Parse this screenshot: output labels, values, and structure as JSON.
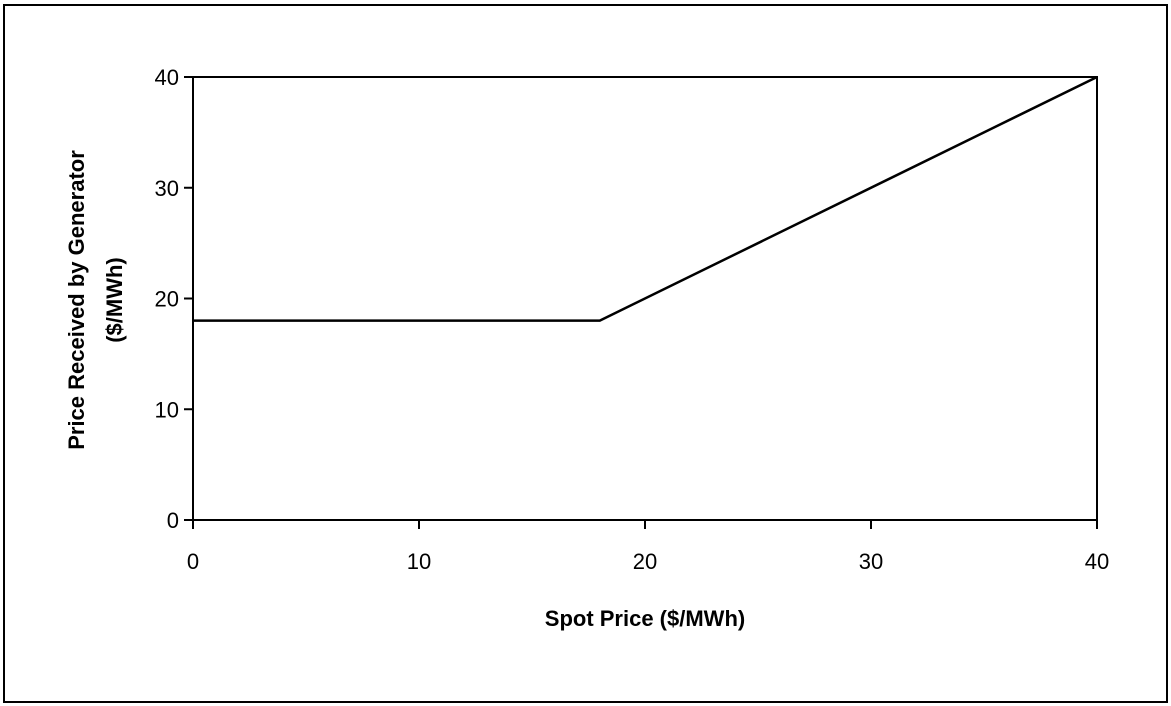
{
  "chart_data": {
    "type": "line",
    "title": "",
    "xlabel": "Spot Price ($/MWh)",
    "ylabel_lines": [
      "Price Received by  Generator",
      "($/MWh)"
    ],
    "xlim": [
      0,
      40
    ],
    "ylim": [
      0,
      40
    ],
    "xticks": [
      0,
      10,
      20,
      30,
      40
    ],
    "yticks": [
      0,
      10,
      20,
      30,
      40
    ],
    "grid": false,
    "legend": "none",
    "series": [
      {
        "x": [
          0,
          18,
          40
        ],
        "y": [
          18,
          18,
          40
        ]
      }
    ]
  }
}
